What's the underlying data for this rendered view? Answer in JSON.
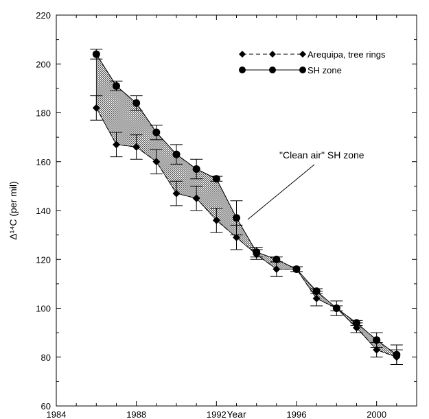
{
  "chart_data": {
    "type": "line",
    "title": "",
    "xlabel": "Year",
    "ylabel": "Δ¹⁴C (per mil)",
    "xlim": [
      1984,
      2002
    ],
    "ylim": [
      60,
      220
    ],
    "xticks": [
      1984,
      1988,
      1992,
      1996,
      2000
    ],
    "yticks": [
      60,
      80,
      100,
      120,
      140,
      160,
      180,
      200,
      220
    ],
    "grid": false,
    "legend_position": "top-right",
    "annotation": "\"Clean air\" SH zone",
    "shaded_region": "between Arequipa tree rings and SH zone series",
    "series": [
      {
        "name": "Arequipa, tree rings",
        "marker": "diamond",
        "line": "dashed",
        "x": [
          1986,
          1987,
          1988,
          1989,
          1990,
          1991,
          1992,
          1993,
          1994,
          1995,
          1996,
          1997,
          1998,
          1999,
          2000,
          2001
        ],
        "y": [
          182,
          167,
          166,
          160,
          147,
          145,
          136,
          129,
          122,
          116,
          116,
          104,
          100,
          92,
          83,
          80
        ],
        "err": [
          5,
          5,
          5,
          5,
          5,
          5,
          5,
          5,
          2,
          3,
          1,
          3,
          3,
          2,
          3,
          3
        ]
      },
      {
        "name": "SH zone",
        "marker": "circle",
        "line": "solid",
        "x": [
          1986,
          1987,
          1988,
          1989,
          1990,
          1991,
          1992,
          1993,
          1994,
          1995,
          1996,
          1997,
          1998,
          1999,
          2000,
          2001
        ],
        "y": [
          204,
          191,
          184,
          172,
          163,
          157,
          153,
          137,
          123,
          120,
          116,
          107,
          100,
          94,
          87,
          81
        ],
        "err": [
          2,
          2,
          3,
          3,
          4,
          4,
          1,
          7,
          2,
          1,
          1,
          1,
          1,
          1,
          3,
          4
        ]
      }
    ]
  }
}
